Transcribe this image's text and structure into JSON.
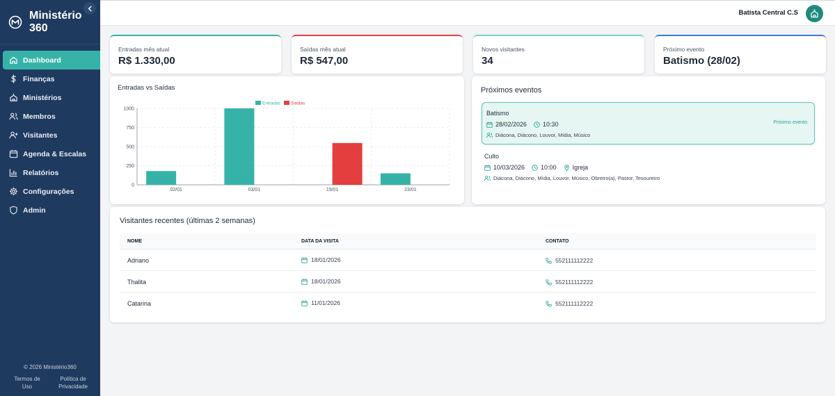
{
  "brand": {
    "name": "Ministério 360"
  },
  "sidebar": {
    "items": [
      {
        "label": "Dashboard",
        "icon": "home-icon",
        "active": true
      },
      {
        "label": "Finanças",
        "icon": "dollar-icon"
      },
      {
        "label": "Ministérios",
        "icon": "church-icon"
      },
      {
        "label": "Membros",
        "icon": "users-icon"
      },
      {
        "label": "Visitantes",
        "icon": "user-plus-icon"
      },
      {
        "label": "Agenda & Escalas",
        "icon": "calendar-icon"
      },
      {
        "label": "Relatórios",
        "icon": "bar-chart-icon"
      },
      {
        "label": "Configurações",
        "icon": "gear-icon"
      },
      {
        "label": "Admin",
        "icon": "shield-icon"
      }
    ],
    "footer": {
      "copyright": "© 2026 Ministério360",
      "terms": "Termos de Uso",
      "privacy": "Política de Privacidade"
    }
  },
  "header": {
    "church": "Batista Central C.S"
  },
  "stats": [
    {
      "label": "Entradas mês atual",
      "value": "R$ 1.330,00",
      "color": "#36b3a8"
    },
    {
      "label": "Saídas mês atual",
      "value": "R$ 547,00",
      "color": "#e53e3e"
    },
    {
      "label": "Novos visitantes",
      "value": "34",
      "color": "#7dd3c8"
    },
    {
      "label": "Próximo evento",
      "value": "Batismo (28/02)",
      "color": "#3b7dd8"
    }
  ],
  "chart_data": {
    "type": "bar",
    "title": "Entradas vs Saídas",
    "categories": [
      "02/01",
      "03/01",
      "19/01",
      "23/01"
    ],
    "series": [
      {
        "name": "Entradas",
        "color": "#36b3a8",
        "values": [
          180,
          1000,
          0,
          150
        ]
      },
      {
        "name": "Saídas",
        "color": "#e53e3e",
        "values": [
          0,
          0,
          547,
          0
        ]
      }
    ],
    "yticks": [
      "0",
      "250",
      "500",
      "750",
      "1000"
    ],
    "ylim": [
      0,
      1000
    ],
    "legend": "top-center",
    "grid": true
  },
  "events": {
    "title": "Próximos eventos",
    "items": [
      {
        "name": "Batismo",
        "date": "28/02/2026",
        "time": "10:30",
        "location": "",
        "people": "Diácona, Diácono, Louvor, Mídia, Músico",
        "badge": "Próximo evento"
      },
      {
        "name": "Culto",
        "date": "10/03/2026",
        "time": "10:00",
        "location": "Igreja",
        "people": "Diácona, Diácono, Mídia, Louvor, Músico, Obreiro(a), Pastor, Tesoureiro",
        "badge": ""
      }
    ]
  },
  "visitors": {
    "title": "Visitantes recentes (últimas 2 semanas)",
    "headers": {
      "name": "NOME",
      "date": "DATA DA VISITA",
      "contact": "CONTATO"
    },
    "rows": [
      {
        "name": "Adriano",
        "date": "18/01/2026",
        "contact": "552111112222"
      },
      {
        "name": "Thalita",
        "date": "18/01/2026",
        "contact": "552111112222"
      },
      {
        "name": "Catarina",
        "date": "11/01/2026",
        "contact": "552111112222"
      }
    ]
  }
}
